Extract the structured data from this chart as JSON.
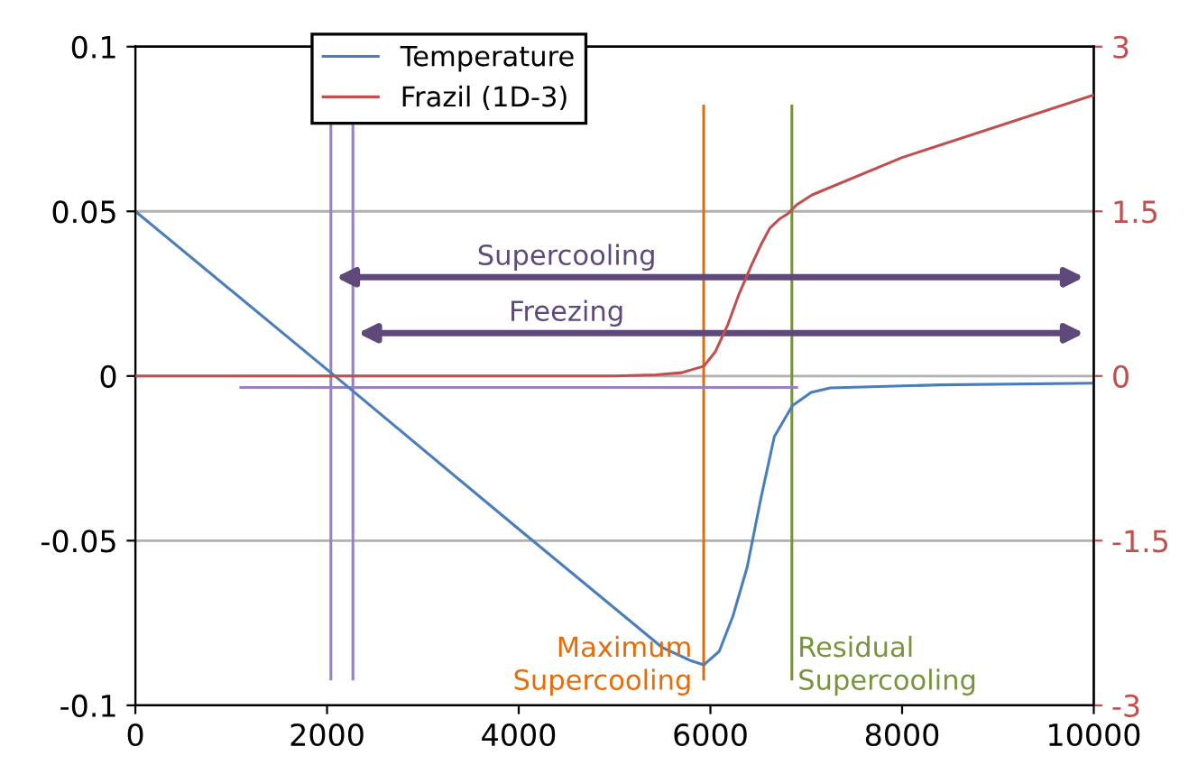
{
  "chart_data": {
    "type": "line",
    "series": [
      {
        "name": "Temperature",
        "color": "#4a7ebb",
        "x": [
          0,
          2040,
          4000,
          5500,
          5800,
          5932,
          6092,
          6234,
          6384,
          6525,
          6667,
          6855,
          7050,
          7250,
          8400,
          10000
        ],
        "values": [
          0.05,
          0.001,
          -0.0465,
          -0.0825,
          -0.0865,
          -0.0877,
          -0.0836,
          -0.073,
          -0.058,
          -0.0374,
          -0.0184,
          -0.009,
          -0.005,
          -0.0036,
          -0.0027,
          -0.0022
        ]
      },
      {
        "name": "Frazil (1D-3)",
        "color": "#c0504d",
        "axis": "y2",
        "x": [
          0,
          5000,
          5430,
          5700,
          5932,
          6050,
          6183,
          6300,
          6434,
          6530,
          6622,
          6720,
          6810,
          6900,
          7062,
          8000,
          10000
        ],
        "values": [
          0,
          0,
          0.01,
          0.03,
          0.09,
          0.22,
          0.47,
          0.75,
          1.02,
          1.2,
          1.35,
          1.43,
          1.48,
          1.56,
          1.65,
          1.99,
          2.56
        ]
      }
    ],
    "xlim": [
      0,
      10000
    ],
    "xticks": [
      0,
      2000,
      4000,
      6000,
      8000,
      10000
    ],
    "ylim": [
      -0.1,
      0.1
    ],
    "yticks": [
      -0.1,
      -0.05,
      0,
      0.05,
      0.1
    ],
    "y2lim": [
      -3,
      3
    ],
    "y2ticks": [
      -3,
      -1.5,
      0,
      1.5,
      3
    ],
    "grid": "y",
    "legend": "top left",
    "marker": "none",
    "line_style": "solid",
    "ref_lines": [
      {
        "axis": "x",
        "value": 2040,
        "color": "#9b7fc4"
      },
      {
        "axis": "x",
        "value": 2270,
        "color": "#9b7fc4"
      },
      {
        "axis": "x",
        "value": 5930,
        "color": "#e46c0a",
        "label": "Maximum\nSupercooling"
      },
      {
        "axis": "x",
        "value": 6850,
        "color": "#77933c",
        "label": "Residual\nSupercooling"
      },
      {
        "axis": "y",
        "value": -0.0035,
        "color": "#9b7fc4"
      }
    ],
    "annotations": [
      "Supercooling",
      "Freezing"
    ]
  }
}
